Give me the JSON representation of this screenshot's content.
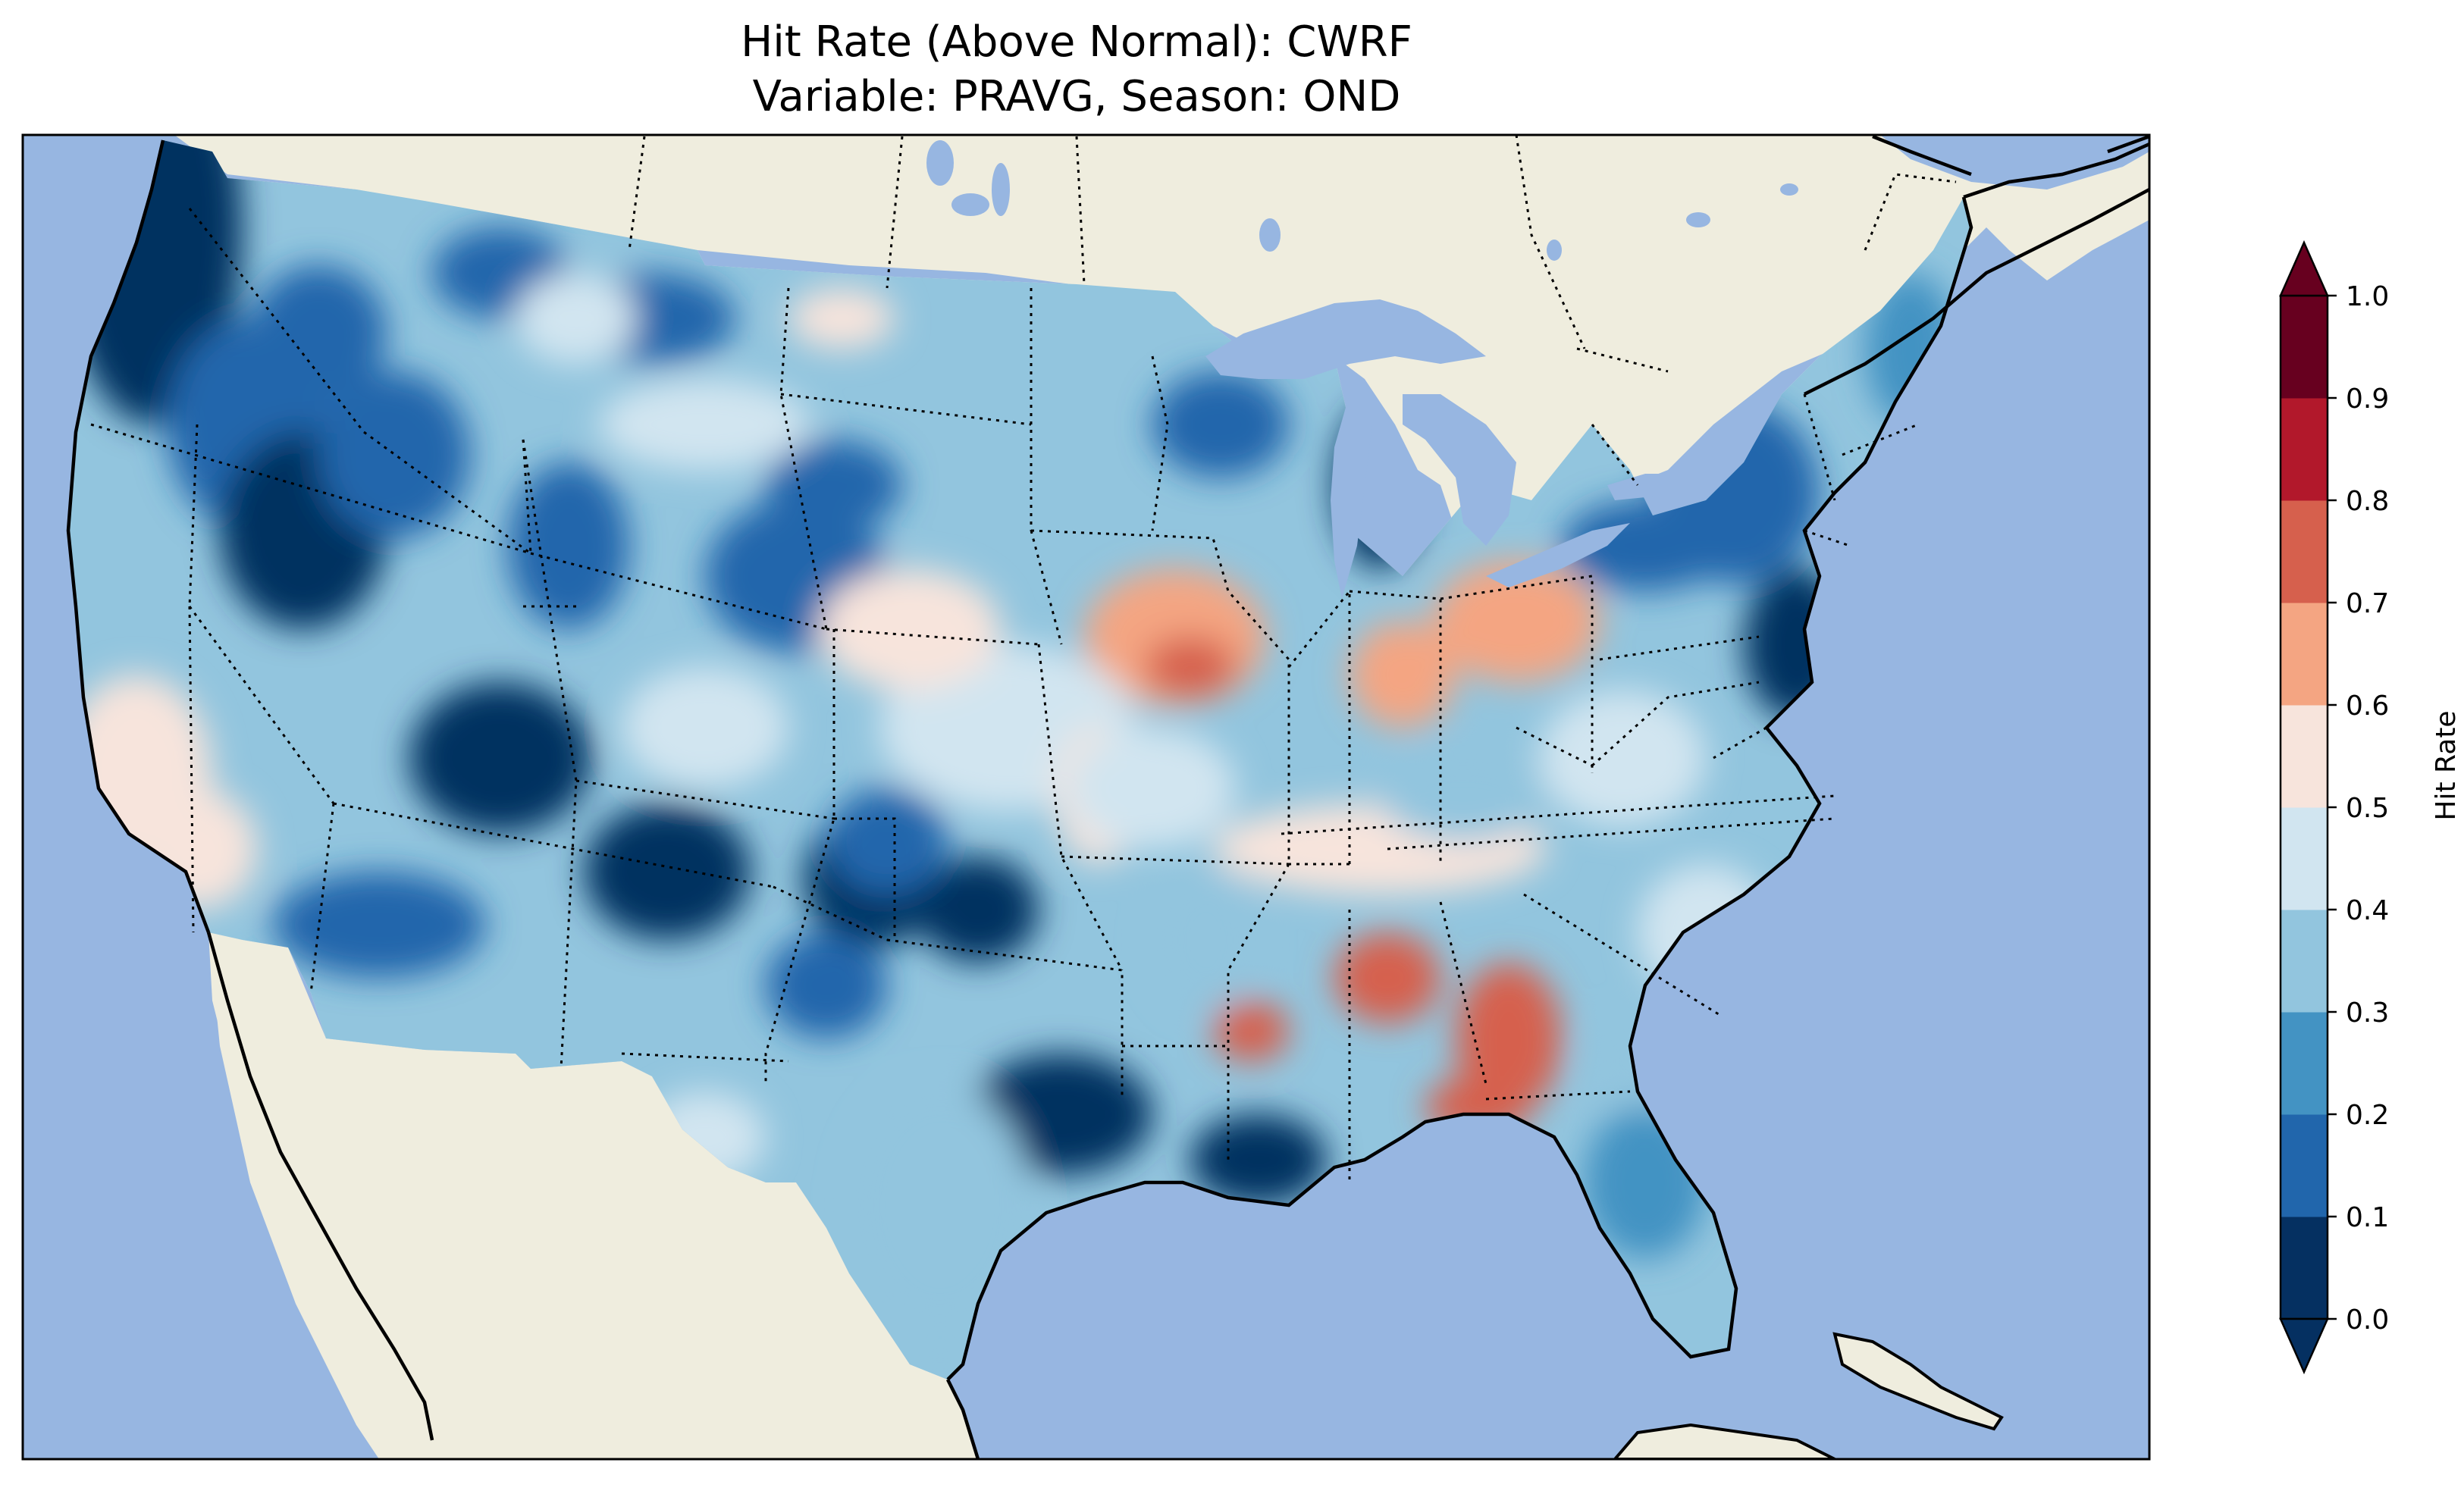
{
  "title": {
    "line1": "Hit Rate (Above Normal): CWRF",
    "line2": "Variable: PRAVG, Season: OND"
  },
  "colorbar": {
    "label": "Hit Rate",
    "ticks": [
      "0.0",
      "0.1",
      "0.2",
      "0.3",
      "0.4",
      "0.5",
      "0.6",
      "0.7",
      "0.8",
      "0.9",
      "1.0"
    ],
    "colors": [
      "#053061",
      "#2166ac",
      "#4393c3",
      "#92c5de",
      "#d1e5f0",
      "#f7e4dc",
      "#f4a582",
      "#d6604d",
      "#b2182b",
      "#67001f"
    ],
    "under_color": "#053061",
    "over_color": "#67001f"
  },
  "map": {
    "ocean_color": "#97b6e1",
    "land_color": "#efedde",
    "lake_color": "#97b6e1"
  },
  "chart_data": {
    "type": "heatmap",
    "title": "Hit Rate (Above Normal): CWRF\nVariable: PRAVG, Season: OND",
    "colorbar_label": "Hit Rate",
    "range": [
      0.0,
      1.0
    ],
    "levels": [
      0.0,
      0.1,
      0.2,
      0.3,
      0.4,
      0.5,
      0.6,
      0.7,
      0.8,
      0.9,
      1.0
    ],
    "regions": [
      {
        "region": "Pacific Northwest coast",
        "value": 0.05
      },
      {
        "region": "Idaho / Oregon interior",
        "value": 0.1
      },
      {
        "region": "Southern Nevada / Utah / Arizona",
        "value": 0.1
      },
      {
        "region": "New Mexico / West Texas",
        "value": 0.1
      },
      {
        "region": "Northern Plains / Minnesota",
        "value": 0.25
      },
      {
        "region": "Central Plains / Kansas",
        "value": 0.45
      },
      {
        "region": "Missouri / Illinois",
        "value": 0.65
      },
      {
        "region": "Ohio Valley",
        "value": 0.6
      },
      {
        "region": "Alabama / Georgia",
        "value": 0.7
      },
      {
        "region": "Louisiana coast",
        "value": 0.05
      },
      {
        "region": "Mid-Atlantic / Pennsylvania",
        "value": 0.1
      },
      {
        "region": "Southern California coast",
        "value": 0.55
      },
      {
        "region": "Florida peninsula",
        "value": 0.3
      }
    ]
  }
}
